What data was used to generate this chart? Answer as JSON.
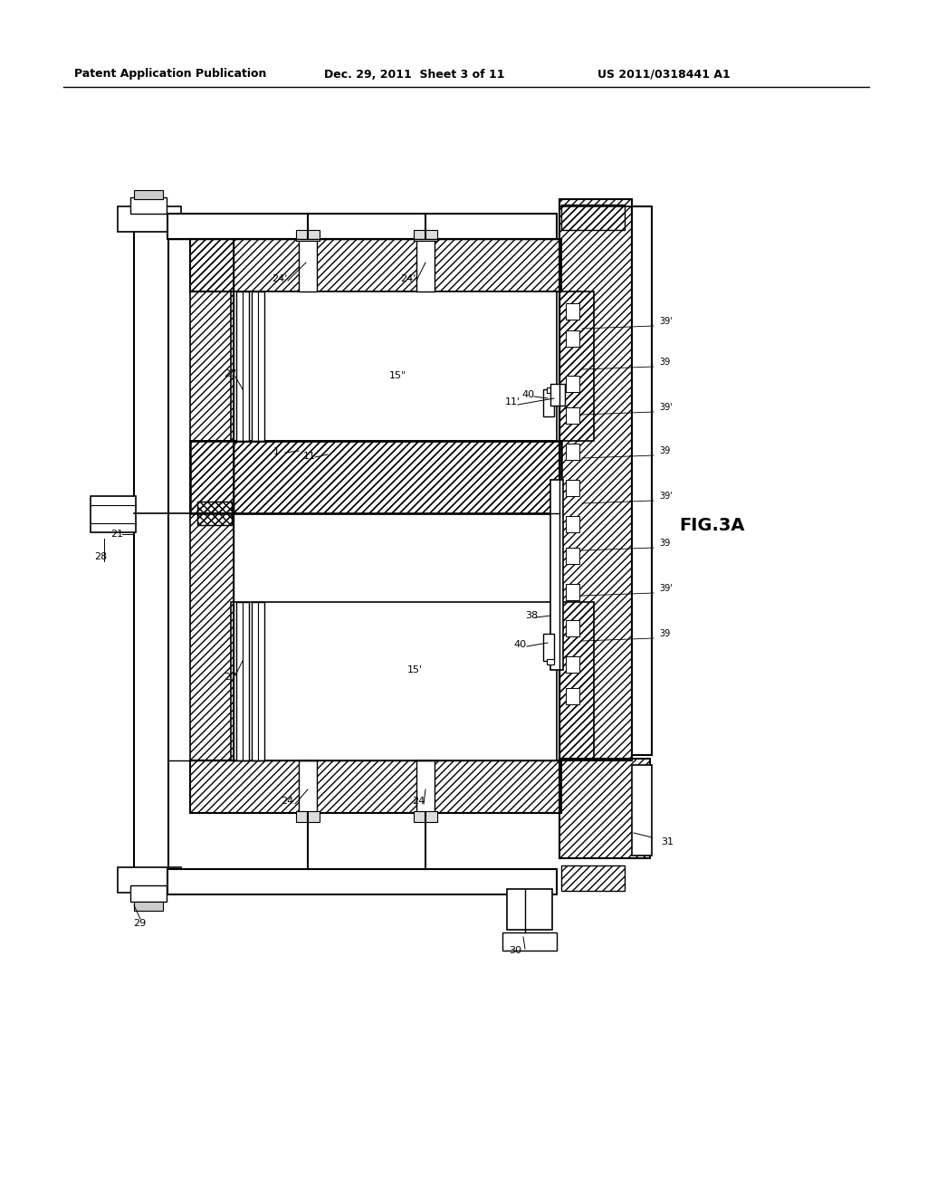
{
  "bg_color": "#ffffff",
  "header_left": "Patent Application Publication",
  "header_center": "Dec. 29, 2011  Sheet 3 of 11",
  "header_right": "US 2011/0318441 A1",
  "fig_label": "FIG.3A"
}
